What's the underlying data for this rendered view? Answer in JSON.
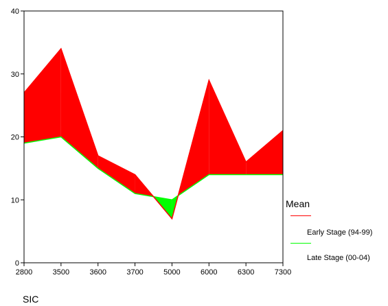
{
  "chart_data": {
    "type": "area",
    "title": "",
    "xlabel": "SIC",
    "ylabel": "",
    "categories": [
      "2800",
      "3500",
      "3600",
      "3700",
      "5000",
      "6000",
      "6300",
      "7300"
    ],
    "ylim": [
      0,
      40
    ],
    "yticks": [
      0,
      10,
      20,
      30,
      40
    ],
    "series": [
      {
        "name": "Early Stage (94-99)",
        "color": "#ff0000",
        "x": [
          0,
          1,
          2,
          3,
          3.5,
          4,
          5,
          6,
          7
        ],
        "values": [
          27,
          34,
          17,
          14,
          10.5,
          7,
          29,
          16,
          21
        ]
      },
      {
        "name": "Late Stage (00-04)",
        "color": "#00ff00",
        "x": [
          0,
          1,
          2,
          3,
          3.5,
          4,
          5,
          6,
          7
        ],
        "values": [
          19,
          20,
          15,
          11,
          10.5,
          10,
          14,
          14,
          14
        ]
      }
    ],
    "fill_above": "#ff0000",
    "fill_below": "#00ff00",
    "legend": {
      "title": "Mean",
      "position": "right"
    },
    "grid": false
  }
}
